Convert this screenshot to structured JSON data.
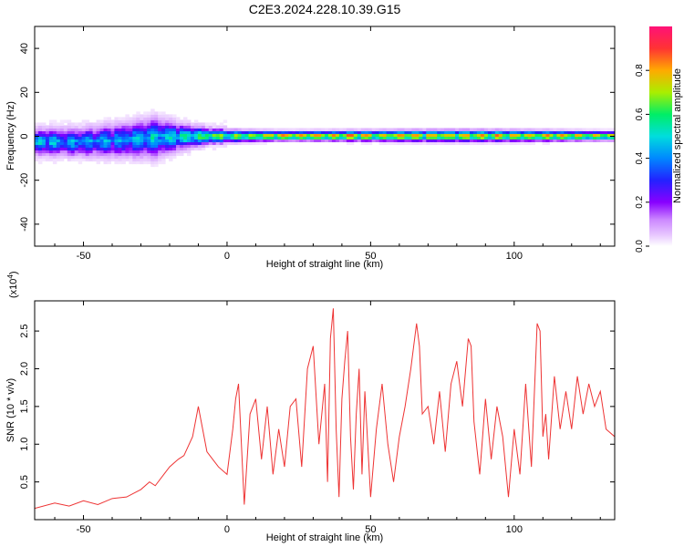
{
  "title": "C2E3.2024.228.10.39.G15",
  "chart_data": [
    {
      "type": "heatmap",
      "xlabel": "Height of straight line (km)",
      "ylabel": "Frequency (Hz)",
      "xlim": [
        -67,
        135
      ],
      "ylim": [
        -50,
        50
      ],
      "x_ticks": [
        -50,
        0,
        50,
        100
      ],
      "y_ticks": [
        -40,
        -20,
        0,
        20,
        40
      ],
      "x_tick_labels": [
        "-50",
        "0",
        "50",
        "100"
      ],
      "y_tick_labels": [
        "-40",
        "-20",
        "0",
        "20",
        "40"
      ],
      "colorbar": {
        "label": "Normalized spectral amplitude",
        "range": [
          0,
          1
        ],
        "ticks": [
          0.0,
          0.2,
          0.4,
          0.6,
          0.8
        ],
        "tick_labels": [
          "0.0",
          "0.2",
          "0.4",
          "0.6",
          "0.8"
        ],
        "colors": [
          "#ffffff",
          "#e8c8ff",
          "#cc88ff",
          "#8800ff",
          "#2222ff",
          "#0088ff",
          "#00dddd",
          "#00ee66",
          "#aaee00",
          "#ffaa00",
          "#ff3333",
          "#ff1177"
        ]
      },
      "ridge": [
        {
          "x": -67,
          "f": -2.5,
          "spread": 4.5,
          "level": 0.45
        },
        {
          "x": -50,
          "f": -2.5,
          "spread": 5.0,
          "level": 0.42
        },
        {
          "x": -35,
          "f": -1.5,
          "spread": 6.0,
          "level": 0.45
        },
        {
          "x": -25,
          "f": -0.5,
          "spread": 7.0,
          "level": 0.5
        },
        {
          "x": -15,
          "f": 0.0,
          "spread": 4.0,
          "level": 0.55
        },
        {
          "x": -5,
          "f": 0.2,
          "spread": 2.5,
          "level": 0.65
        },
        {
          "x": 5,
          "f": 0.2,
          "spread": 2.0,
          "level": 0.75
        },
        {
          "x": 20,
          "f": 0.3,
          "spread": 1.6,
          "level": 0.9
        },
        {
          "x": 50,
          "f": 0.3,
          "spread": 1.8,
          "level": 0.85
        },
        {
          "x": 80,
          "f": 0.3,
          "spread": 2.0,
          "level": 0.85
        },
        {
          "x": 110,
          "f": 0.3,
          "spread": 1.8,
          "level": 0.85
        },
        {
          "x": 135,
          "f": 0.3,
          "spread": 1.5,
          "level": 0.8
        }
      ]
    },
    {
      "type": "line",
      "xlabel": "Height of straight line (km)",
      "ylabel": "SNR (10 * v/v)",
      "y_multiplier": "(x10",
      "y_multiplier_exp": "4",
      "y_multiplier_close": ")",
      "xlim": [
        -67,
        135
      ],
      "ylim": [
        0,
        2.9
      ],
      "x_ticks": [
        -50,
        0,
        50,
        100
      ],
      "y_ticks": [
        0.5,
        1.0,
        1.5,
        2.0,
        2.5
      ],
      "x_tick_labels": [
        "-50",
        "0",
        "50",
        "100"
      ],
      "y_tick_labels": [
        "0.5",
        "1.0",
        "1.5",
        "2.0",
        "2.5"
      ],
      "line_color": "#ee3333",
      "series": [
        {
          "x": [
            -67,
            -60,
            -55,
            -50,
            -45,
            -40,
            -35,
            -30,
            -27,
            -25,
            -22,
            -20,
            -17,
            -15,
            -12,
            -10,
            -7,
            -5,
            -3,
            0,
            2,
            3,
            4,
            5,
            6,
            8,
            10,
            12,
            14,
            16,
            18,
            20,
            22,
            24,
            26,
            28,
            30,
            32,
            34,
            35,
            36,
            37,
            38,
            39,
            40,
            41,
            42,
            43,
            44,
            45,
            46,
            47,
            48,
            50,
            52,
            54,
            56,
            58,
            60,
            62,
            64,
            66,
            67,
            68,
            70,
            72,
            74,
            76,
            78,
            80,
            82,
            84,
            85,
            86,
            88,
            90,
            92,
            94,
            96,
            98,
            100,
            102,
            104,
            106,
            108,
            109,
            110,
            111,
            112,
            114,
            116,
            118,
            120,
            122,
            124,
            126,
            128,
            130,
            132,
            135
          ],
          "y": [
            0.15,
            0.22,
            0.18,
            0.25,
            0.2,
            0.28,
            0.3,
            0.4,
            0.5,
            0.45,
            0.6,
            0.7,
            0.8,
            0.85,
            1.1,
            1.5,
            0.9,
            0.8,
            0.7,
            0.6,
            1.2,
            1.6,
            1.8,
            1.0,
            0.2,
            1.4,
            1.6,
            0.8,
            1.5,
            0.6,
            1.2,
            0.7,
            1.5,
            1.6,
            0.7,
            2.0,
            2.3,
            1.0,
            1.8,
            0.5,
            2.4,
            2.8,
            1.2,
            0.3,
            1.6,
            2.1,
            2.5,
            1.1,
            0.4,
            1.4,
            2.0,
            0.6,
            1.7,
            0.3,
            1.2,
            1.8,
            1.0,
            0.5,
            1.1,
            1.5,
            2.0,
            2.6,
            2.3,
            1.4,
            1.5,
            1.0,
            1.7,
            0.9,
            1.8,
            2.1,
            1.5,
            2.4,
            2.3,
            1.3,
            0.6,
            1.6,
            0.8,
            1.5,
            1.1,
            0.3,
            1.2,
            0.6,
            1.8,
            0.7,
            2.6,
            2.5,
            1.1,
            1.4,
            0.8,
            1.9,
            1.2,
            1.7,
            1.2,
            1.9,
            1.4,
            1.8,
            1.5,
            1.7,
            1.2,
            1.1
          ]
        }
      ]
    }
  ]
}
